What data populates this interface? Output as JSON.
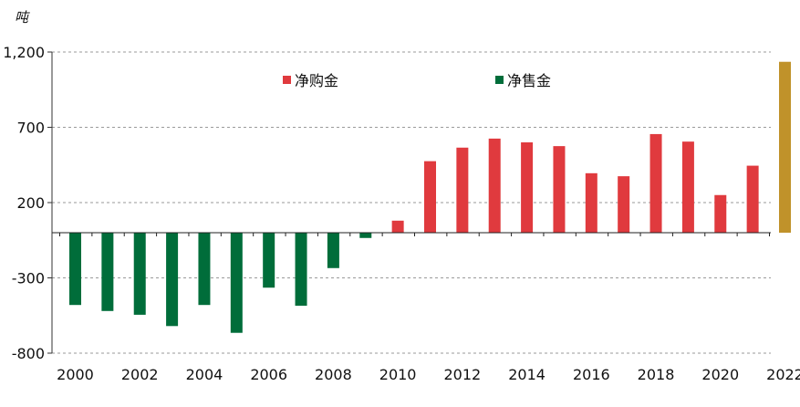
{
  "chart_data": {
    "type": "bar",
    "title": "",
    "xlabel": "",
    "ylabel": "",
    "unit_label": "吨",
    "ylim": [
      -800,
      1200
    ],
    "yticks": [
      -800,
      -300,
      200,
      700,
      1200
    ],
    "ytick_labels": [
      "-800",
      "-300",
      "200",
      "700",
      "1,200"
    ],
    "grid": "horizontal dashed",
    "legend_position": "top",
    "x_tick_labels": [
      "2000",
      "2002",
      "2004",
      "2006",
      "2008",
      "2010",
      "2012",
      "2014",
      "2016",
      "2018",
      "2020",
      "2022"
    ],
    "categories": [
      "2000",
      "2001",
      "2002",
      "2003",
      "2004",
      "2005",
      "2006",
      "2007",
      "2008",
      "2009",
      "2010",
      "2011",
      "2012",
      "2013",
      "2014",
      "2015",
      "2016",
      "2017",
      "2018",
      "2019",
      "2020",
      "2021",
      "2022"
    ],
    "values": [
      -480,
      -520,
      -545,
      -620,
      -480,
      -665,
      -365,
      -485,
      -235,
      -35,
      80,
      475,
      565,
      625,
      600,
      575,
      395,
      375,
      655,
      605,
      250,
      445,
      1135
    ],
    "bar_colors": [
      "#006d3a",
      "#006d3a",
      "#006d3a",
      "#006d3a",
      "#006d3a",
      "#006d3a",
      "#006d3a",
      "#006d3a",
      "#006d3a",
      "#006d3a",
      "#e03a3e",
      "#e03a3e",
      "#e03a3e",
      "#e03a3e",
      "#e03a3e",
      "#e03a3e",
      "#e03a3e",
      "#e03a3e",
      "#e03a3e",
      "#e03a3e",
      "#e03a3e",
      "#e03a3e",
      "#c0922a"
    ],
    "legend": [
      {
        "label": "净购金",
        "color": "#e03a3e"
      },
      {
        "label": "净售金",
        "color": "#006d3a"
      }
    ]
  }
}
